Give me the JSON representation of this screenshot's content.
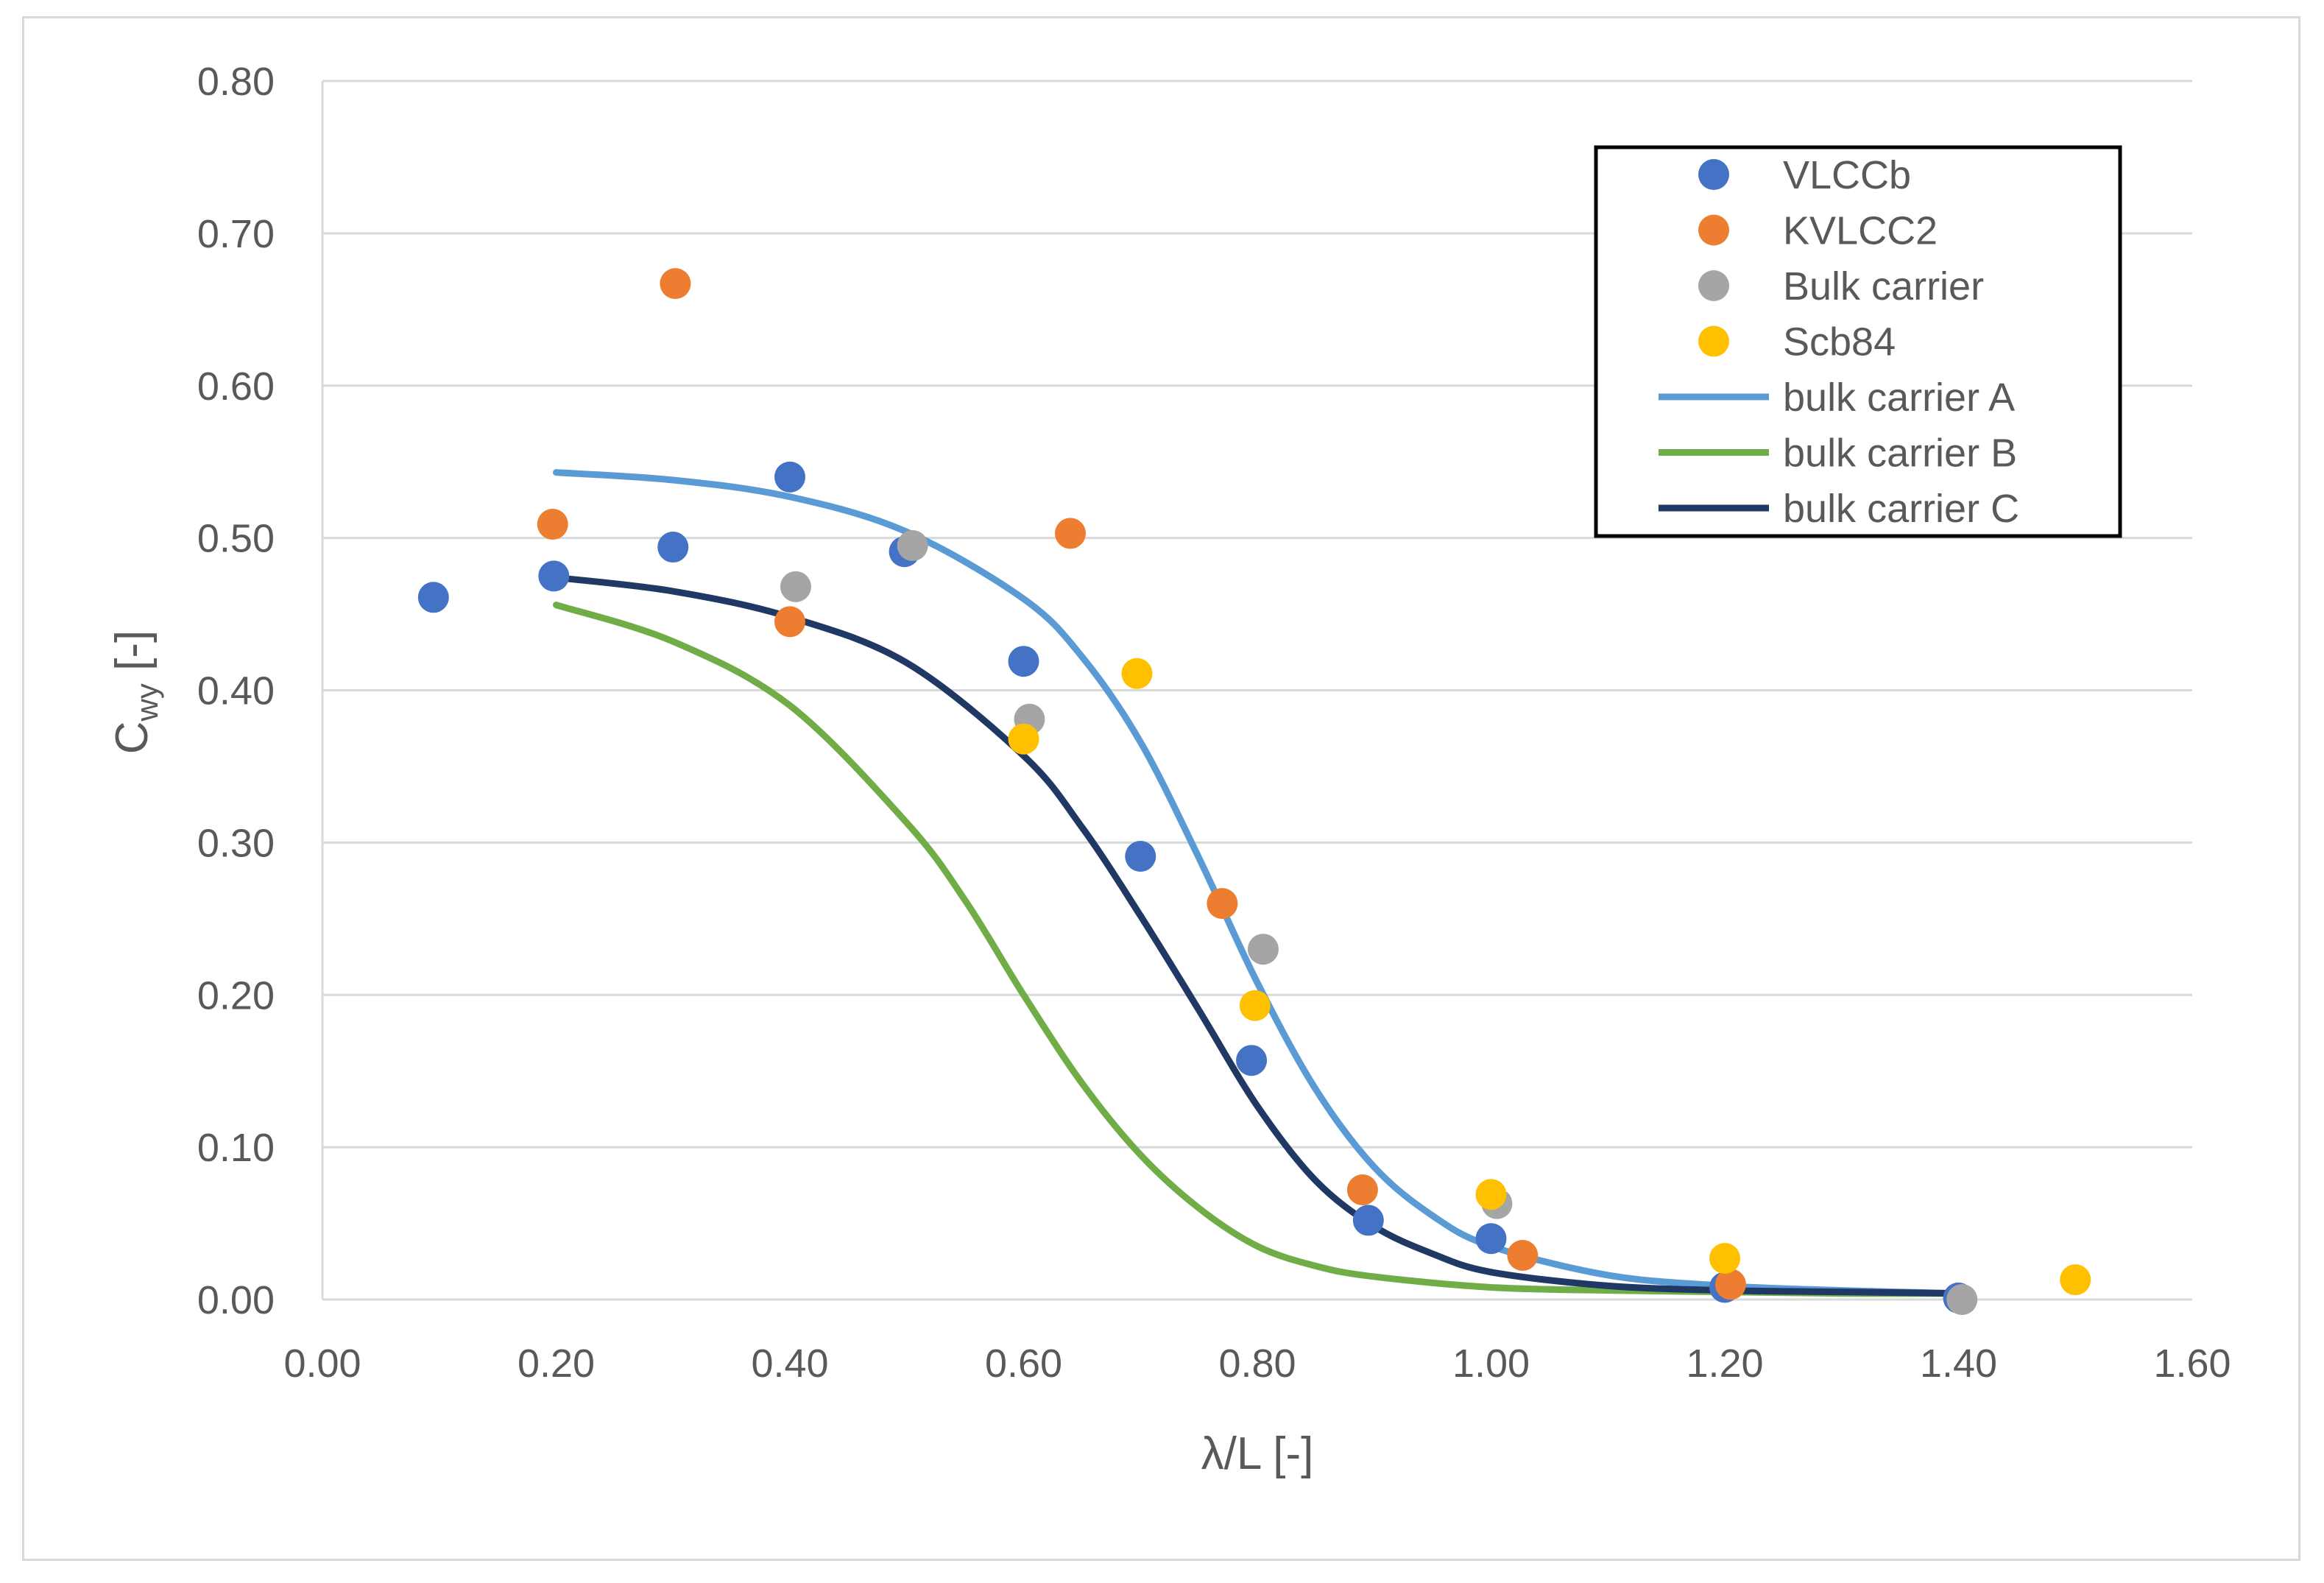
{
  "chart_data": {
    "type": "scatter",
    "title": "",
    "xlabel": "λ/L [-]",
    "ylabel": "C",
    "ylabel_sub": "wy",
    "ylabel_suffix": " [-]",
    "xlim": [
      0,
      1.6
    ],
    "ylim": [
      0,
      0.8
    ],
    "x_ticks": [
      0.0,
      0.2,
      0.4,
      0.6,
      0.8,
      1.0,
      1.2,
      1.4,
      1.6
    ],
    "y_ticks": [
      0.0,
      0.1,
      0.2,
      0.3,
      0.4,
      0.5,
      0.6,
      0.7,
      0.8
    ],
    "x_tick_labels": [
      "0.00",
      "0.20",
      "0.40",
      "0.60",
      "0.80",
      "1.00",
      "1.20",
      "1.40",
      "1.60"
    ],
    "y_tick_labels": [
      "0.00",
      "0.10",
      "0.20",
      "0.30",
      "0.40",
      "0.50",
      "0.60",
      "0.70",
      "0.80"
    ],
    "grid": "horizontal",
    "legend_position": "top-right",
    "series": [
      {
        "name": "VLCCb",
        "kind": "markers",
        "color": "#4472c4",
        "points": [
          [
            0.095,
            0.461
          ],
          [
            0.198,
            0.475
          ],
          [
            0.3,
            0.494
          ],
          [
            0.4,
            0.54
          ],
          [
            0.498,
            0.491
          ],
          [
            0.6,
            0.419
          ],
          [
            0.7,
            0.291
          ],
          [
            0.795,
            0.157
          ],
          [
            0.895,
            0.052
          ],
          [
            1.0,
            0.04
          ],
          [
            1.2,
            0.008
          ],
          [
            1.4,
            0.001
          ]
        ]
      },
      {
        "name": "KVLCC2",
        "kind": "markers",
        "color": "#ed7d31",
        "points": [
          [
            0.197,
            0.509
          ],
          [
            0.302,
            0.667
          ],
          [
            0.4,
            0.445
          ],
          [
            0.64,
            0.503
          ],
          [
            0.77,
            0.26
          ],
          [
            0.89,
            0.072
          ],
          [
            1.027,
            0.029
          ],
          [
            1.205,
            0.01
          ]
        ]
      },
      {
        "name": "Bulk carrier",
        "kind": "markers",
        "color": "#a5a5a5",
        "points": [
          [
            0.405,
            0.468
          ],
          [
            0.505,
            0.495
          ],
          [
            0.605,
            0.381
          ],
          [
            0.805,
            0.23
          ],
          [
            1.005,
            0.063
          ],
          [
            1.403,
            0.0
          ]
        ]
      },
      {
        "name": "Scb84",
        "kind": "markers",
        "color": "#ffc000",
        "points": [
          [
            0.6,
            0.368
          ],
          [
            0.697,
            0.411
          ],
          [
            0.798,
            0.193
          ],
          [
            1.0,
            0.069
          ],
          [
            1.2,
            0.027
          ],
          [
            1.5,
            0.013
          ]
        ]
      },
      {
        "name": "bulk carrier A",
        "kind": "line",
        "color": "#5b9bd5",
        "points": [
          [
            0.2,
            0.543
          ],
          [
            0.3,
            0.538
          ],
          [
            0.4,
            0.527
          ],
          [
            0.5,
            0.504
          ],
          [
            0.6,
            0.46
          ],
          [
            0.65,
            0.422
          ],
          [
            0.7,
            0.366
          ],
          [
            0.75,
            0.29
          ],
          [
            0.8,
            0.208
          ],
          [
            0.85,
            0.138
          ],
          [
            0.9,
            0.087
          ],
          [
            0.95,
            0.055
          ],
          [
            1.0,
            0.035
          ],
          [
            1.1,
            0.016
          ],
          [
            1.2,
            0.009
          ],
          [
            1.3,
            0.006
          ],
          [
            1.4,
            0.004
          ]
        ]
      },
      {
        "name": "bulk carrier B",
        "kind": "line",
        "color": "#70ad47",
        "points": [
          [
            0.2,
            0.456
          ],
          [
            0.3,
            0.432
          ],
          [
            0.4,
            0.39
          ],
          [
            0.5,
            0.313
          ],
          [
            0.55,
            0.262
          ],
          [
            0.6,
            0.2
          ],
          [
            0.65,
            0.142
          ],
          [
            0.7,
            0.095
          ],
          [
            0.75,
            0.06
          ],
          [
            0.8,
            0.035
          ],
          [
            0.85,
            0.022
          ],
          [
            0.9,
            0.015
          ],
          [
            1.0,
            0.008
          ],
          [
            1.1,
            0.006
          ],
          [
            1.2,
            0.005
          ],
          [
            1.3,
            0.004
          ],
          [
            1.4,
            0.004
          ]
        ]
      },
      {
        "name": "bulk carrier C",
        "kind": "line",
        "color": "#203864",
        "points": [
          [
            0.2,
            0.474
          ],
          [
            0.3,
            0.465
          ],
          [
            0.4,
            0.448
          ],
          [
            0.5,
            0.418
          ],
          [
            0.6,
            0.357
          ],
          [
            0.65,
            0.31
          ],
          [
            0.7,
            0.252
          ],
          [
            0.75,
            0.19
          ],
          [
            0.8,
            0.127
          ],
          [
            0.85,
            0.078
          ],
          [
            0.9,
            0.048
          ],
          [
            0.95,
            0.03
          ],
          [
            1.0,
            0.018
          ],
          [
            1.1,
            0.009
          ],
          [
            1.2,
            0.006
          ],
          [
            1.3,
            0.005
          ],
          [
            1.4,
            0.004
          ]
        ]
      }
    ]
  }
}
